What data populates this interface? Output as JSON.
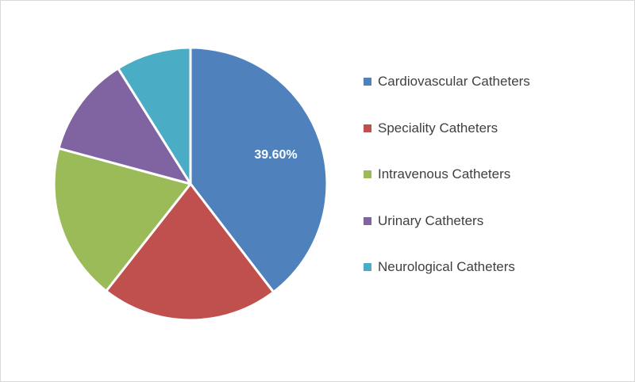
{
  "chart_data": {
    "type": "pie",
    "categories": [
      "Cardiovascular Catheters",
      "Speciality Catheters",
      "Intravenous Catheters",
      "Urinary Catheters",
      "Neurological Catheters"
    ],
    "values": [
      39.6,
      21.0,
      18.6,
      11.9,
      8.9
    ],
    "data_labels": [
      "39.60%",
      "",
      "",
      "",
      ""
    ],
    "colors": [
      "#4f81bd",
      "#c0504d",
      "#9bbb59",
      "#8064a2",
      "#4bacc6"
    ],
    "legend_position": "right",
    "start_angle_deg": 0,
    "direction": "clockwise"
  }
}
